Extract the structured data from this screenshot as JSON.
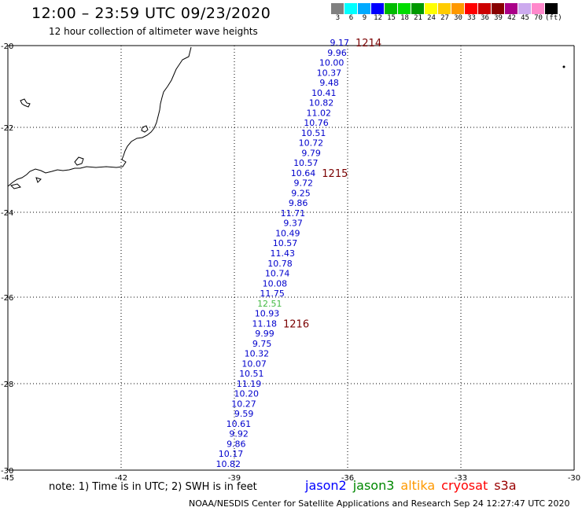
{
  "header": {
    "title": "12:00 – 23:59 UTC 09/23/2020",
    "subtitle": "12 hour collection of altimeter wave heights"
  },
  "colorbar": {
    "colors": [
      "#808080",
      "#00ffff",
      "#00aaff",
      "#0000ff",
      "#00bb00",
      "#00dd00",
      "#009900",
      "#ffff00",
      "#ffcc00",
      "#ff9900",
      "#ff0000",
      "#cc0000",
      "#880000",
      "#aa0088",
      "#ccaaee",
      "#ff88cc",
      "#000000"
    ],
    "labels": [
      "3",
      "6",
      "9",
      "12",
      "15",
      "18",
      "21",
      "24",
      "27",
      "30",
      "33",
      "36",
      "39",
      "42",
      "45",
      "70",
      "(ft)"
    ]
  },
  "axes": {
    "lon_labels": [
      "-45",
      "-42",
      "-39",
      "-36",
      "-33",
      "-30"
    ],
    "lat_labels": [
      "-20",
      "-22",
      "-24",
      "-26",
      "-28",
      "-30"
    ]
  },
  "orbits": [
    {
      "label": "1214"
    },
    {
      "label": "1215"
    },
    {
      "label": "1216"
    }
  ],
  "observations": [
    {
      "value": "9.17",
      "color": "#0000cc"
    },
    {
      "value": "9.96",
      "color": "#0000cc"
    },
    {
      "value": "10.00",
      "color": "#0000cc"
    },
    {
      "value": "10.37",
      "color": "#0000cc"
    },
    {
      "value": "9.48",
      "color": "#0000cc"
    },
    {
      "value": "10.41",
      "color": "#0000cc"
    },
    {
      "value": "10.82",
      "color": "#0000cc"
    },
    {
      "value": "11.02",
      "color": "#0000cc"
    },
    {
      "value": "10.76",
      "color": "#0000cc"
    },
    {
      "value": "10.51",
      "color": "#0000cc"
    },
    {
      "value": "10.72",
      "color": "#0000cc"
    },
    {
      "value": "9.79",
      "color": "#0000cc"
    },
    {
      "value": "10.57",
      "color": "#0000cc"
    },
    {
      "value": "10.64",
      "color": "#0000cc"
    },
    {
      "value": "9.72",
      "color": "#0000cc"
    },
    {
      "value": "9.25",
      "color": "#0000cc"
    },
    {
      "value": "9.86",
      "color": "#0000cc"
    },
    {
      "value": "11.71",
      "color": "#0000cc"
    },
    {
      "value": "9.37",
      "color": "#0000cc"
    },
    {
      "value": "10.49",
      "color": "#0000cc"
    },
    {
      "value": "10.57",
      "color": "#0000cc"
    },
    {
      "value": "11.43",
      "color": "#0000cc"
    },
    {
      "value": "10.78",
      "color": "#0000cc"
    },
    {
      "value": "10.74",
      "color": "#0000cc"
    },
    {
      "value": "10.08",
      "color": "#0000cc"
    },
    {
      "value": "11.75",
      "color": "#0000cc"
    },
    {
      "value": "12.51",
      "color": "#44bb44"
    },
    {
      "value": "10.93",
      "color": "#0000cc"
    },
    {
      "value": "11.18",
      "color": "#0000cc"
    },
    {
      "value": "9.99",
      "color": "#0000cc"
    },
    {
      "value": "9.75",
      "color": "#0000cc"
    },
    {
      "value": "10.32",
      "color": "#0000cc"
    },
    {
      "value": "10.07",
      "color": "#0000cc"
    },
    {
      "value": "10.51",
      "color": "#0000cc"
    },
    {
      "value": "11.19",
      "color": "#0000cc"
    },
    {
      "value": "10.20",
      "color": "#0000cc"
    },
    {
      "value": "10.27",
      "color": "#0000cc"
    },
    {
      "value": "9.59",
      "color": "#0000cc"
    },
    {
      "value": "10.61",
      "color": "#0000cc"
    },
    {
      "value": "9.92",
      "color": "#0000cc"
    },
    {
      "value": "9.86",
      "color": "#0000cc"
    },
    {
      "value": "10.17",
      "color": "#0000cc"
    },
    {
      "value": "10.82",
      "color": "#0000cc"
    }
  ],
  "footer": {
    "note": "note: 1) Time is in UTC; 2) SWH is in feet",
    "satellites": [
      {
        "name": "jason2",
        "color": "#0000ff"
      },
      {
        "name": "jason3",
        "color": "#008800"
      },
      {
        "name": "altika",
        "color": "#ff9900"
      },
      {
        "name": "cryosat",
        "color": "#ff0000"
      },
      {
        "name": "s3a",
        "color": "#990000"
      }
    ],
    "credit": "NOAA/NESDIS Center for Satellite Applications and Research   Sep 24 12:27:47 UTC 2020"
  }
}
